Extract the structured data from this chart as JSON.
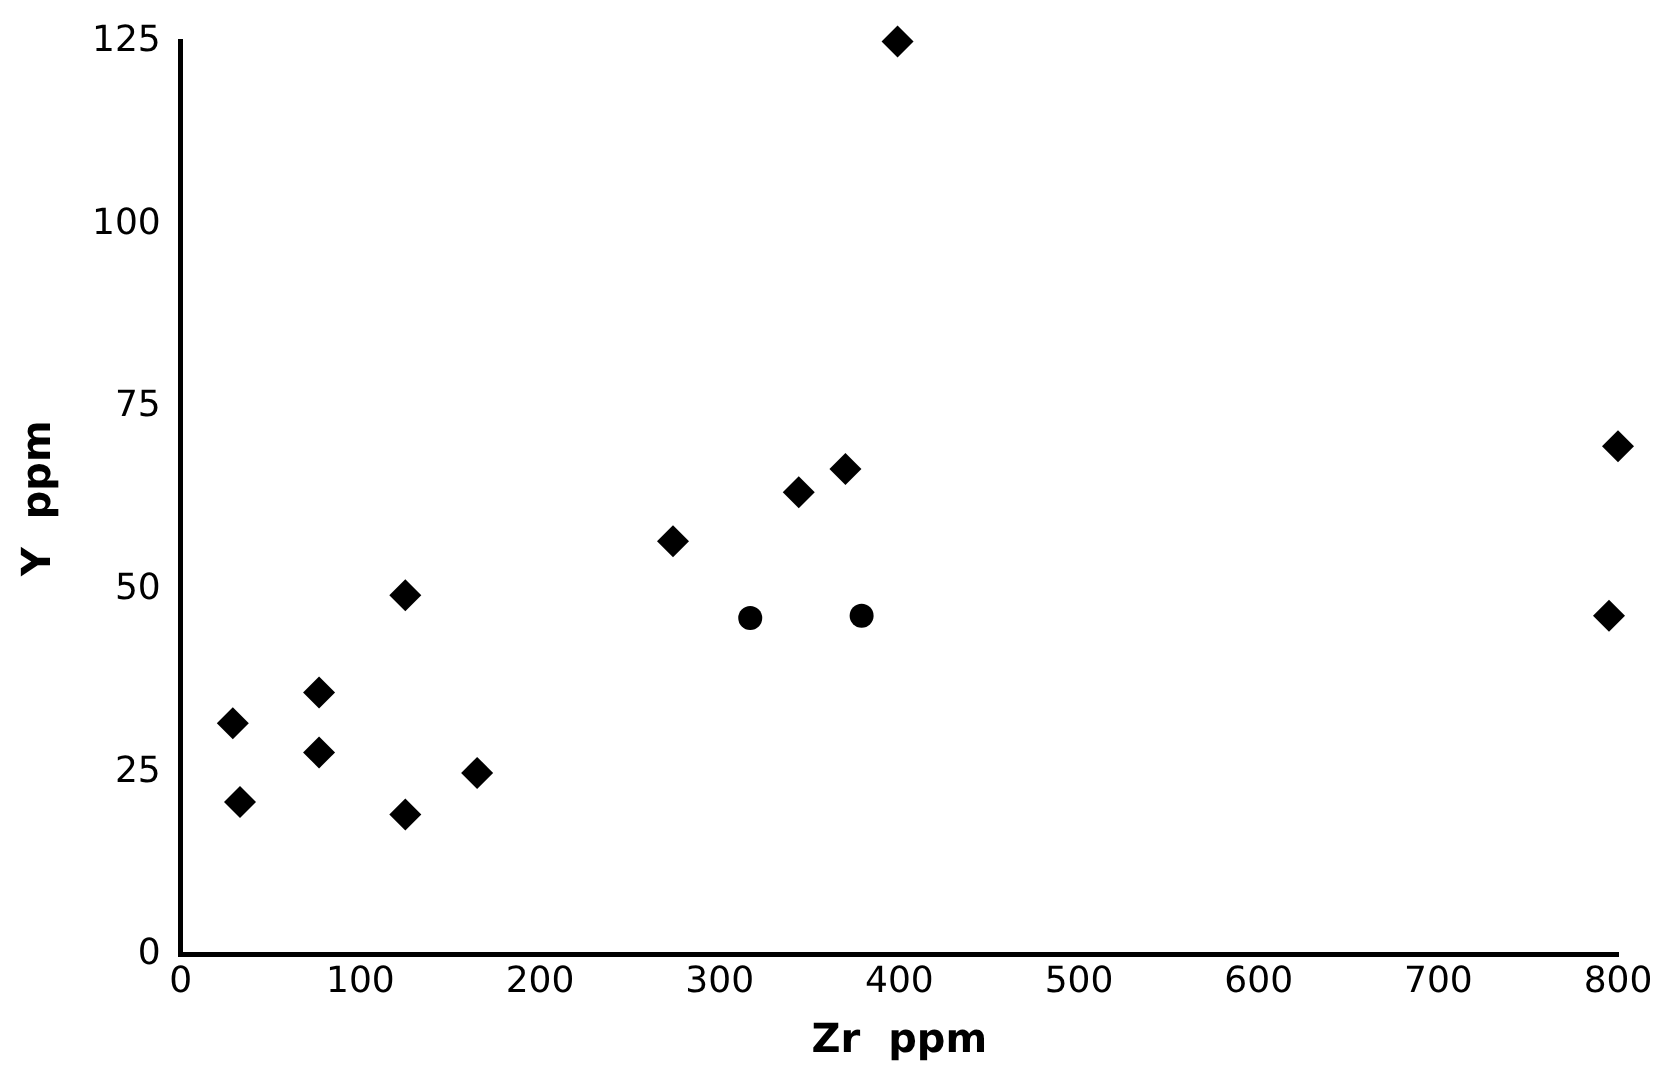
{
  "chart_data": {
    "type": "scatter",
    "xlabel": "Zr  ppm",
    "ylabel": "Y  ppm",
    "xlim": [
      0,
      800
    ],
    "xticks": [
      0,
      100,
      200,
      300,
      400,
      500,
      600,
      700,
      800
    ],
    "ylim": [
      0,
      125
    ],
    "yticks": [
      0,
      25,
      50,
      75,
      100,
      125
    ],
    "grid": false,
    "legend": false,
    "series": [
      {
        "color": "#000000",
        "marker": "diamond",
        "x": [
          29,
          33,
          77,
          77,
          125,
          125,
          165,
          274,
          344,
          370,
          399,
          795,
          800
        ],
        "values": [
          31.7,
          20.9,
          35.9,
          27.7,
          49.2,
          19.2,
          24.9,
          56.6,
          63.3,
          66.5,
          125,
          46.4,
          69.6
        ]
      },
      {
        "color": "#000000",
        "marker": "circle",
        "x": [
          317,
          379
        ],
        "values": [
          46.1,
          46.4
        ]
      }
    ]
  }
}
